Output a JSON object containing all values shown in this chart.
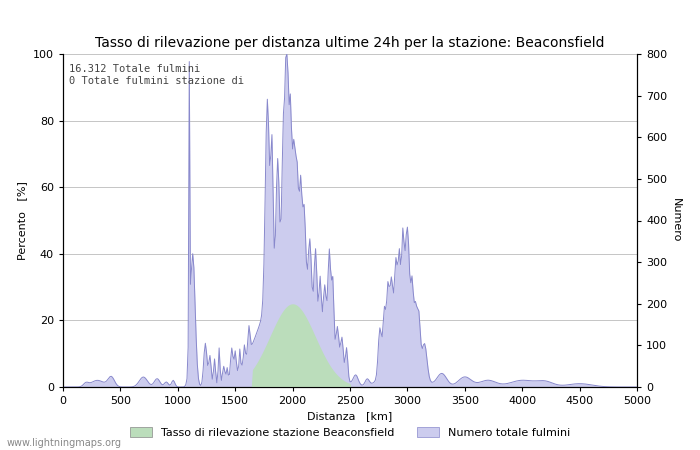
{
  "title": "Tasso di rilevazione per distanza ultime 24h per la stazione: Beaconsfield",
  "xlabel": "Distanza   [km]",
  "ylabel_left": "Percento   [%]",
  "ylabel_right": "Numero",
  "annotation_line1": "16.312 Totale fulmini",
  "annotation_line2": "0 Totale fulmini stazione di",
  "xlim": [
    0,
    5000
  ],
  "ylim_left": [
    0,
    100
  ],
  "ylim_right": [
    0,
    800
  ],
  "xticks": [
    0,
    500,
    1000,
    1500,
    2000,
    2500,
    3000,
    3500,
    4000,
    4500,
    5000
  ],
  "yticks_left": [
    0,
    20,
    40,
    60,
    80,
    100
  ],
  "yticks_right": [
    0,
    100,
    200,
    300,
    400,
    500,
    600,
    700,
    800
  ],
  "legend_label_green": "Tasso di rilevazione stazione Beaconsfield",
  "legend_label_blue": "Numero totale fulmini",
  "watermark": "www.lightningmaps.org",
  "fill_green_color": "#bbddbb",
  "fill_blue_color": "#ccccee",
  "line_color": "#8888cc",
  "background_color": "#ffffff",
  "grid_color": "#bbbbbb",
  "title_fontsize": 10,
  "axis_fontsize": 8,
  "tick_fontsize": 8,
  "legend_fontsize": 8,
  "watermark_fontsize": 7
}
